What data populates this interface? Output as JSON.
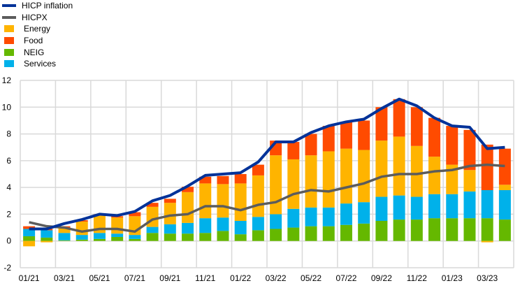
{
  "chart_data": {
    "type": "bar",
    "subtype": "stacked-bar-with-lines",
    "title": "",
    "xlabel": "",
    "ylabel": "",
    "ylim": [
      -2,
      12
    ],
    "yticks": [
      -2,
      0,
      2,
      4,
      6,
      8,
      10,
      12
    ],
    "grid": true,
    "legend_position": "top-left",
    "categories": [
      "01/21",
      "02/21",
      "03/21",
      "04/21",
      "05/21",
      "06/21",
      "07/21",
      "08/21",
      "09/21",
      "10/21",
      "11/21",
      "12/21",
      "01/22",
      "02/22",
      "03/22",
      "04/22",
      "05/22",
      "06/22",
      "07/22",
      "08/22",
      "09/22",
      "10/22",
      "11/22",
      "12/22",
      "01/23",
      "02/23",
      "03/23",
      "04/23"
    ],
    "xtick_labels": [
      "01/21",
      "03/21",
      "05/21",
      "07/21",
      "09/21",
      "11/21",
      "01/22",
      "03/22",
      "05/22",
      "07/22",
      "09/22",
      "11/22",
      "01/23",
      "03/23"
    ],
    "bar_series": [
      {
        "name": "NEIG",
        "color": "#65b800",
        "values": [
          0.35,
          0.25,
          0.05,
          0.1,
          0.15,
          0.3,
          0.15,
          0.6,
          0.55,
          0.55,
          0.6,
          0.75,
          0.5,
          0.8,
          0.9,
          1.0,
          1.1,
          1.1,
          1.2,
          1.3,
          1.5,
          1.6,
          1.6,
          1.7,
          1.7,
          1.7,
          1.7,
          1.6
        ]
      },
      {
        "name": "Services",
        "color": "#00b1ea",
        "values": [
          0.55,
          0.55,
          0.55,
          0.35,
          0.45,
          0.25,
          0.3,
          0.45,
          0.7,
          0.8,
          1.1,
          1.0,
          1.0,
          1.0,
          1.1,
          1.4,
          1.4,
          1.4,
          1.6,
          1.6,
          1.8,
          1.8,
          1.7,
          1.8,
          1.8,
          2.0,
          2.1,
          2.2
        ]
      },
      {
        "name": "Energy",
        "color": "#ffb400",
        "values": [
          -0.4,
          -0.1,
          0.4,
          1.0,
          1.3,
          1.2,
          1.4,
          1.5,
          1.6,
          2.3,
          2.6,
          2.5,
          2.8,
          3.1,
          4.4,
          3.7,
          3.9,
          4.2,
          4.1,
          3.9,
          4.2,
          4.4,
          3.8,
          2.8,
          2.2,
          1.6,
          -0.1,
          0.4
        ]
      },
      {
        "name": "Food",
        "color": "#ff4b00",
        "values": [
          0.2,
          0.1,
          0.1,
          0.1,
          0.1,
          0.1,
          0.3,
          0.3,
          0.3,
          0.4,
          0.5,
          0.6,
          0.7,
          0.8,
          1.1,
          1.3,
          1.6,
          1.9,
          2.0,
          2.2,
          2.5,
          2.8,
          2.9,
          2.9,
          2.9,
          3.0,
          3.4,
          2.7
        ]
      }
    ],
    "line_series": [
      {
        "name": "HICP inflation",
        "color": "#003299",
        "values": [
          0.9,
          0.9,
          1.3,
          1.6,
          2.0,
          1.9,
          2.2,
          3.0,
          3.4,
          4.1,
          4.9,
          5.0,
          5.1,
          5.9,
          7.4,
          7.4,
          8.1,
          8.6,
          8.9,
          9.1,
          9.9,
          10.6,
          10.1,
          9.2,
          8.6,
          8.5,
          6.9,
          7.0
        ]
      },
      {
        "name": "HICPX",
        "color": "#5c5c5c",
        "values": [
          1.4,
          1.1,
          1.0,
          0.7,
          0.9,
          0.9,
          0.7,
          1.6,
          1.9,
          2.0,
          2.6,
          2.6,
          2.3,
          2.7,
          2.9,
          3.5,
          3.8,
          3.7,
          4.0,
          4.3,
          4.8,
          5.0,
          5.0,
          5.2,
          5.3,
          5.6,
          5.7,
          5.6
        ]
      }
    ],
    "legend": [
      "HICP inflation",
      "HICPX",
      "Energy",
      "Food",
      "NEIG",
      "Services"
    ]
  }
}
